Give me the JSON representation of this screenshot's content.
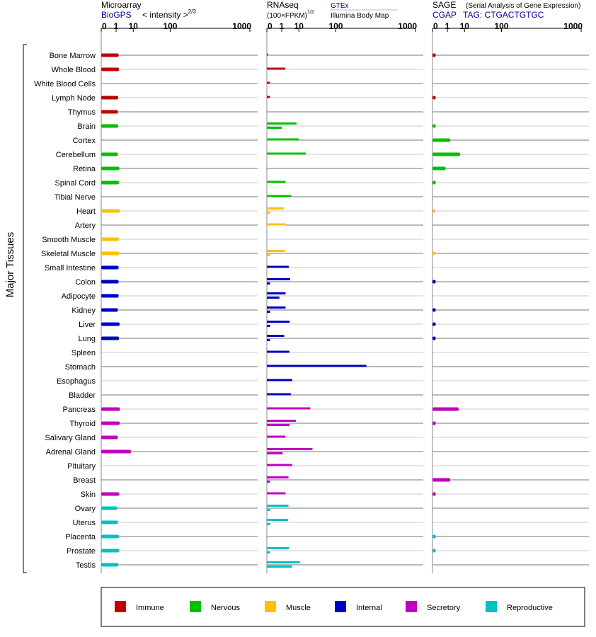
{
  "header": {
    "microarray": {
      "title": "Microarray",
      "source": "BioGPS",
      "unit_prefix": "< intensity >",
      "unit_exp": "2/3"
    },
    "rnaseq": {
      "title": "RNAseq",
      "unit": "(100×FPKM)",
      "unit_exp": "1/2",
      "source_a": "GTEx",
      "source_b": "Illumina Body Map"
    },
    "sage": {
      "title": "SAGE",
      "subtitle": "(Serial Analysis of Gene Expression)",
      "source": "CGAP",
      "tag": "TAG: CTGACTGTGC"
    }
  },
  "side_label": "Major Tissues",
  "legend": [
    {
      "label": "Immune",
      "color": "#c00000"
    },
    {
      "label": "Nervous",
      "color": "#00c000"
    },
    {
      "label": "Muscle",
      "color": "#ffc000"
    },
    {
      "label": "Internal",
      "color": "#0000c0"
    },
    {
      "label": "Secretory",
      "color": "#c000c0"
    },
    {
      "label": "Reproductive",
      "color": "#00c0c0"
    }
  ],
  "chart_data": [
    {
      "type": "bar",
      "panel": "Microarray",
      "title": "Microarray",
      "axis_ticks": [
        "0",
        "1",
        "10",
        "100",
        "1000"
      ],
      "xlim": [
        0,
        1000
      ],
      "scale": "power 1/3",
      "categories": [
        "Bone Marrow",
        "Whole Blood",
        "White Blood Cells",
        "Lymph Node",
        "Thymus",
        "Brain",
        "Cortex",
        "Cerebellum",
        "Retina",
        "Spinal Cord",
        "Tibial Nerve",
        "Heart",
        "Artery",
        "Smooth Muscle",
        "Skeletal Muscle",
        "Small Intestine",
        "Colon",
        "Adipocyte",
        "Kidney",
        "Liver",
        "Lung",
        "Spleen",
        "Stomach",
        "Esophagus",
        "Bladder",
        "Pancreas",
        "Thyroid",
        "Salivary Gland",
        "Adrenal Gland",
        "Pituitary",
        "Breast",
        "Skin",
        "Ovary",
        "Uterus",
        "Placenta",
        "Prostate",
        "Testis"
      ],
      "groups": [
        "Immune",
        "Immune",
        "Immune",
        "Immune",
        "Immune",
        "Nervous",
        "Nervous",
        "Nervous",
        "Nervous",
        "Nervous",
        "Nervous",
        "Muscle",
        "Muscle",
        "Muscle",
        "Muscle",
        "Internal",
        "Internal",
        "Internal",
        "Internal",
        "Internal",
        "Internal",
        "Internal",
        "Internal",
        "Internal",
        "Internal",
        "Secretory",
        "Secretory",
        "Secretory",
        "Secretory",
        "Secretory",
        "Secretory",
        "Secretory",
        "Reproductive",
        "Reproductive",
        "Reproductive",
        "Reproductive",
        "Reproductive"
      ],
      "values": [
        1.6,
        1.7,
        null,
        1.5,
        1.4,
        1.5,
        null,
        1.4,
        1.8,
        1.7,
        null,
        2.0,
        null,
        1.7,
        1.8,
        1.6,
        1.6,
        1.6,
        1.4,
        1.9,
        1.7,
        null,
        null,
        null,
        null,
        2.0,
        1.9,
        1.4,
        8.0,
        null,
        null,
        1.8,
        1.2,
        1.4,
        1.7,
        1.8,
        1.5
      ]
    },
    {
      "type": "bar",
      "panel": "RNAseq",
      "title": "RNAseq",
      "axis_ticks": [
        "0",
        "1",
        "10",
        "100",
        "1000"
      ],
      "xlim": [
        0,
        1000
      ],
      "scale": "power 1/3",
      "series": [
        {
          "name": "GTEx",
          "values": [
            0,
            1.9,
            0.01,
            0.01,
            null,
            8.0,
            10.0,
            18.0,
            null,
            2.0,
            4.5,
            1.5,
            2.1,
            null,
            1.9,
            3.2,
            3.9,
            2.0,
            2.0,
            3.6,
            1.6,
            3.5,
            300,
            5.0,
            4.2,
            25,
            7.5,
            2.0,
            29,
            5.0,
            3.1,
            2.0,
            3.1,
            3.0,
            null,
            3.2,
            11
          ]
        },
        {
          "name": "Illumina Body Map",
          "values": [
            null,
            null,
            null,
            null,
            null,
            1.0,
            null,
            null,
            null,
            null,
            null,
            0.01,
            null,
            null,
            0.01,
            null,
            0.01,
            0.6,
            0.01,
            0.01,
            0.01,
            null,
            null,
            null,
            null,
            null,
            3.6,
            null,
            1.2,
            null,
            0.01,
            null,
            0.01,
            0.01,
            null,
            0.01,
            4.8
          ]
        }
      ]
    },
    {
      "type": "bar",
      "panel": "SAGE",
      "title": "SAGE",
      "axis_ticks": [
        "0",
        "1",
        "10",
        "100",
        "1000"
      ],
      "xlim": [
        0,
        1000
      ],
      "scale": "power 1/3",
      "values": [
        0.01,
        null,
        null,
        0.01,
        null,
        0.01,
        1.7,
        6.5,
        0.7,
        0.01,
        null,
        0.005,
        null,
        null,
        0.005,
        null,
        0.01,
        null,
        0.01,
        0.01,
        0.01,
        null,
        null,
        null,
        null,
        5.5,
        0.01,
        null,
        null,
        null,
        1.7,
        0.01,
        null,
        null,
        0.01,
        0.01,
        null
      ]
    }
  ]
}
